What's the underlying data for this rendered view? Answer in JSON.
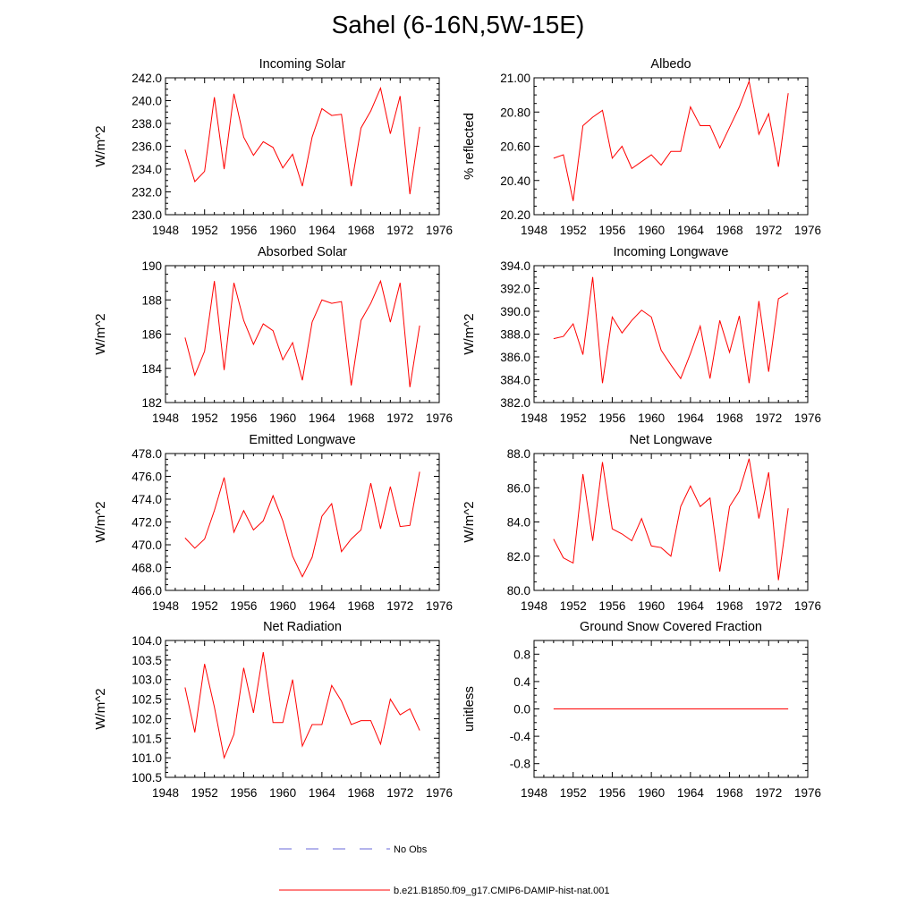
{
  "title": "Sahel (6-16N,5W-15E)",
  "colors": {
    "model": "#ff0000",
    "obs": "#6a6ad8",
    "axis": "#000000"
  },
  "legend": {
    "entries": [
      {
        "label": "No Obs",
        "style": "dashed",
        "color": "#6a6ad8"
      },
      {
        "label": "b.e21.B1850.f09_g17.CMIP6-DAMIP-hist-nat.001",
        "style": "solid",
        "color": "#ff0000"
      }
    ]
  },
  "chart_data": [
    {
      "type": "line",
      "title": "Incoming Solar",
      "ylabel": "W/m^2",
      "xlim": [
        1948,
        1976
      ],
      "xticks": [
        "1948",
        "1952",
        "1956",
        "1960",
        "1964",
        "1968",
        "1972",
        "1976"
      ],
      "ylim": [
        230,
        242
      ],
      "yticks": [
        "230.0",
        "232.0",
        "234.0",
        "236.0",
        "238.0",
        "240.0",
        "242.0"
      ],
      "series": [
        {
          "x": [
            1950,
            1951,
            1952,
            1953,
            1954,
            1955,
            1956,
            1957,
            1958,
            1959,
            1960,
            1961,
            1962,
            1963,
            1964,
            1965,
            1966,
            1967,
            1968,
            1969,
            1970,
            1971,
            1972,
            1973,
            1974
          ],
          "values": [
            235.7,
            232.9,
            233.8,
            240.3,
            234.0,
            240.6,
            236.8,
            235.2,
            236.4,
            235.9,
            234.1,
            235.3,
            232.5,
            236.8,
            239.3,
            238.7,
            238.8,
            232.5,
            237.6,
            239.1,
            241.1,
            237.1,
            240.4,
            231.8,
            237.7
          ]
        }
      ]
    },
    {
      "type": "line",
      "title": "Albedo",
      "ylabel": "% reflected",
      "xlim": [
        1948,
        1976
      ],
      "xticks": [
        "1948",
        "1952",
        "1956",
        "1960",
        "1964",
        "1968",
        "1972",
        "1976"
      ],
      "ylim": [
        20.2,
        21.0
      ],
      "yticks": [
        "20.20",
        "20.40",
        "20.60",
        "20.80",
        "21.00"
      ],
      "series": [
        {
          "x": [
            1950,
            1951,
            1952,
            1953,
            1954,
            1955,
            1956,
            1957,
            1958,
            1959,
            1960,
            1961,
            1962,
            1963,
            1964,
            1965,
            1966,
            1967,
            1968,
            1969,
            1970,
            1971,
            1972,
            1973,
            1974
          ],
          "values": [
            20.53,
            20.55,
            20.28,
            20.72,
            20.77,
            20.81,
            20.53,
            20.6,
            20.47,
            20.51,
            20.55,
            20.49,
            20.57,
            20.57,
            20.83,
            20.72,
            20.72,
            20.59,
            20.71,
            20.83,
            20.98,
            20.67,
            20.79,
            20.48,
            20.91
          ]
        }
      ]
    },
    {
      "type": "line",
      "title": "Absorbed Solar",
      "ylabel": "W/m^2",
      "xlim": [
        1948,
        1976
      ],
      "xticks": [
        "1948",
        "1952",
        "1956",
        "1960",
        "1964",
        "1968",
        "1972",
        "1976"
      ],
      "ylim": [
        182,
        190
      ],
      "yticks": [
        "182",
        "184",
        "186",
        "188",
        "190"
      ],
      "series": [
        {
          "x": [
            1950,
            1951,
            1952,
            1953,
            1954,
            1955,
            1956,
            1957,
            1958,
            1959,
            1960,
            1961,
            1962,
            1963,
            1964,
            1965,
            1966,
            1967,
            1968,
            1969,
            1970,
            1971,
            1972,
            1973,
            1974
          ],
          "values": [
            185.8,
            183.6,
            185.0,
            189.1,
            183.9,
            189.0,
            186.8,
            185.4,
            186.6,
            186.2,
            184.5,
            185.5,
            183.3,
            186.7,
            188.0,
            187.8,
            187.9,
            183.0,
            186.8,
            187.8,
            189.1,
            186.7,
            189.0,
            182.9,
            186.5
          ]
        }
      ]
    },
    {
      "type": "line",
      "title": "Incoming Longwave",
      "ylabel": "W/m^2",
      "xlim": [
        1948,
        1976
      ],
      "xticks": [
        "1948",
        "1952",
        "1956",
        "1960",
        "1964",
        "1968",
        "1972",
        "1976"
      ],
      "ylim": [
        382,
        394
      ],
      "yticks": [
        "382.0",
        "384.0",
        "386.0",
        "388.0",
        "390.0",
        "392.0",
        "394.0"
      ],
      "series": [
        {
          "x": [
            1950,
            1951,
            1952,
            1953,
            1954,
            1955,
            1956,
            1957,
            1958,
            1959,
            1960,
            1961,
            1962,
            1963,
            1964,
            1965,
            1966,
            1967,
            1968,
            1969,
            1970,
            1971,
            1972,
            1973,
            1974
          ],
          "values": [
            387.6,
            387.8,
            388.9,
            386.2,
            393.0,
            383.7,
            389.5,
            388.1,
            389.2,
            390.1,
            389.5,
            386.6,
            385.3,
            384.1,
            386.3,
            388.7,
            384.1,
            389.2,
            386.4,
            389.6,
            383.7,
            390.9,
            384.7,
            391.1,
            391.6
          ]
        }
      ]
    },
    {
      "type": "line",
      "title": "Emitted Longwave",
      "ylabel": "W/m^2",
      "xlim": [
        1948,
        1976
      ],
      "xticks": [
        "1948",
        "1952",
        "1956",
        "1960",
        "1964",
        "1968",
        "1972",
        "1976"
      ],
      "ylim": [
        466,
        478
      ],
      "yticks": [
        "466.0",
        "468.0",
        "470.0",
        "472.0",
        "474.0",
        "476.0",
        "478.0"
      ],
      "series": [
        {
          "x": [
            1950,
            1951,
            1952,
            1953,
            1954,
            1955,
            1956,
            1957,
            1958,
            1959,
            1960,
            1961,
            1962,
            1963,
            1964,
            1965,
            1966,
            1967,
            1968,
            1969,
            1970,
            1971,
            1972,
            1973,
            1974
          ],
          "values": [
            470.6,
            469.7,
            470.5,
            473.0,
            475.9,
            471.1,
            473.0,
            471.3,
            472.1,
            474.3,
            472.1,
            469.0,
            467.2,
            468.9,
            472.5,
            473.6,
            469.4,
            470.5,
            471.3,
            475.4,
            471.4,
            475.1,
            471.6,
            471.7,
            476.4
          ]
        }
      ]
    },
    {
      "type": "line",
      "title": "Net Longwave",
      "ylabel": "W/m^2",
      "xlim": [
        1948,
        1976
      ],
      "xticks": [
        "1948",
        "1952",
        "1956",
        "1960",
        "1964",
        "1968",
        "1972",
        "1976"
      ],
      "ylim": [
        80,
        88
      ],
      "yticks": [
        "80.0",
        "82.0",
        "84.0",
        "86.0",
        "88.0"
      ],
      "series": [
        {
          "x": [
            1950,
            1951,
            1952,
            1953,
            1954,
            1955,
            1956,
            1957,
            1958,
            1959,
            1960,
            1961,
            1962,
            1963,
            1964,
            1965,
            1966,
            1967,
            1968,
            1969,
            1970,
            1971,
            1972,
            1973,
            1974
          ],
          "values": [
            83.0,
            81.9,
            81.6,
            86.8,
            82.9,
            87.5,
            83.6,
            83.3,
            82.9,
            84.2,
            82.6,
            82.5,
            82.0,
            84.9,
            86.1,
            84.9,
            85.4,
            81.1,
            84.9,
            85.8,
            87.7,
            84.2,
            86.9,
            80.6,
            84.8
          ]
        }
      ]
    },
    {
      "type": "line",
      "title": "Net Radiation",
      "ylabel": "W/m^2",
      "xlim": [
        1948,
        1976
      ],
      "xticks": [
        "1948",
        "1952",
        "1956",
        "1960",
        "1964",
        "1968",
        "1972",
        "1976"
      ],
      "ylim": [
        100.5,
        104.0
      ],
      "yticks": [
        "100.5",
        "101.0",
        "101.5",
        "102.0",
        "102.5",
        "103.0",
        "103.5",
        "104.0"
      ],
      "series": [
        {
          "x": [
            1950,
            1951,
            1952,
            1953,
            1954,
            1955,
            1956,
            1957,
            1958,
            1959,
            1960,
            1961,
            1962,
            1963,
            1964,
            1965,
            1966,
            1967,
            1968,
            1969,
            1970,
            1971,
            1972,
            1973,
            1974
          ],
          "values": [
            102.8,
            101.65,
            103.4,
            102.3,
            101.0,
            101.6,
            103.3,
            102.15,
            103.7,
            101.9,
            101.9,
            103.0,
            101.3,
            101.85,
            101.85,
            102.85,
            102.45,
            101.85,
            101.95,
            101.95,
            101.35,
            102.5,
            102.1,
            102.25,
            101.7
          ]
        }
      ]
    },
    {
      "type": "line",
      "title": "Ground Snow Covered Fraction",
      "ylabel": "unitless",
      "xlim": [
        1948,
        1976
      ],
      "xticks": [
        "1948",
        "1952",
        "1956",
        "1960",
        "1964",
        "1968",
        "1972",
        "1976"
      ],
      "ylim": [
        -1.0,
        1.0
      ],
      "yticks": [
        "-0.8",
        "-0.4",
        "0.0",
        "0.4",
        "0.8"
      ],
      "series": [
        {
          "x": [
            1950,
            1974
          ],
          "values": [
            0.0,
            0.0
          ]
        }
      ]
    }
  ]
}
